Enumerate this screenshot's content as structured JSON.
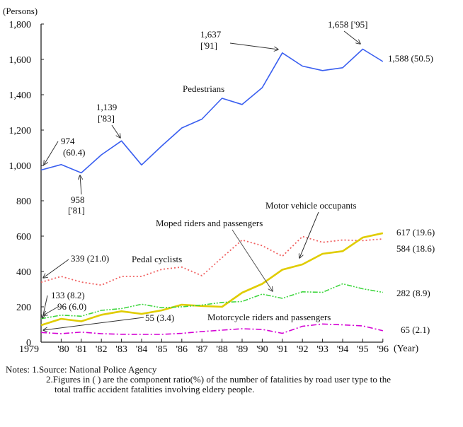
{
  "chart_data": {
    "type": "line",
    "title": "",
    "ylabel": "(Persons)",
    "xlabel": "(Year)",
    "ylim": [
      0,
      1800
    ],
    "yticks": [
      0,
      200,
      400,
      600,
      800,
      1000,
      1200,
      1400,
      1600,
      1800
    ],
    "ytick_labels": [
      "0",
      "200",
      "400",
      "600",
      "800",
      "1,000",
      "1,200",
      "1,400",
      "1,600",
      "1,800"
    ],
    "x": [
      1979,
      1980,
      1981,
      1982,
      1983,
      1984,
      1985,
      1986,
      1987,
      1988,
      1989,
      1990,
      1991,
      1992,
      1993,
      1994,
      1995,
      1996
    ],
    "xtick_labels": [
      "1979",
      "'80",
      "'81",
      "'82",
      "'83",
      "'84",
      "'85",
      "'86",
      "'87",
      "'88",
      "'89",
      "'90",
      "'91",
      "'92",
      "'93",
      "'94",
      "'95",
      "'96"
    ],
    "grid": false,
    "series": [
      {
        "name": "Pedestrians",
        "color": "#3a5ff0",
        "style": "solid",
        "values": [
          974,
          1005,
          958,
          1060,
          1139,
          1003,
          1110,
          1212,
          1262,
          1380,
          1345,
          1440,
          1637,
          1562,
          1537,
          1553,
          1658,
          1588
        ],
        "end_label": "1,588 (50.5)",
        "start_label": "974",
        "start_ratio": "(60.4)"
      },
      {
        "name": "Pedal cyclists",
        "color": "#f06060",
        "style": "dotted",
        "values": [
          339,
          372,
          340,
          323,
          372,
          372,
          412,
          425,
          376,
          478,
          578,
          546,
          486,
          598,
          565,
          578,
          575,
          584
        ],
        "end_label": "584 (18.6)",
        "start_label": "339 (21.0)"
      },
      {
        "name": "Motor vehicle occupants",
        "color": "#e0cc00",
        "style": "solid-thick",
        "values": [
          96,
          132,
          118,
          155,
          175,
          160,
          180,
          212,
          205,
          200,
          280,
          330,
          410,
          440,
          500,
          515,
          592,
          617
        ],
        "end_label": "617 (19.6)",
        "start_label": "96 (6.0)"
      },
      {
        "name": "Moped riders and passengers",
        "color": "#3ed63e",
        "style": "dash-dot-dot",
        "values": [
          133,
          153,
          147,
          180,
          190,
          215,
          195,
          200,
          210,
          225,
          230,
          272,
          248,
          285,
          282,
          330,
          302,
          282
        ],
        "end_label": "282 (8.9)",
        "start_label": "133 (8.2)"
      },
      {
        "name": "Motorcycle riders and passengers",
        "color": "#d400d4",
        "style": "dash-dot",
        "values": [
          55,
          48,
          57,
          48,
          45,
          44,
          44,
          50,
          60,
          68,
          76,
          72,
          50,
          90,
          103,
          98,
          92,
          65
        ],
        "end_label": "65 (2.1)",
        "start_label": "55 (3.4)"
      }
    ],
    "annotations": [
      {
        "text": "1,139",
        "sub": "['83]",
        "year": 1983,
        "value": 1139
      },
      {
        "text": "958",
        "sub": "['81]",
        "year": 1981,
        "value": 958
      },
      {
        "text": "1,637",
        "sub": "['91]",
        "year": 1991,
        "value": 1637
      },
      {
        "text": "1,658 ['95]",
        "year": 1995,
        "value": 1658
      }
    ]
  },
  "notes": {
    "line1": "Notes: 1.Source: National Police Agency",
    "line2": "2.Figures in ( ) are the component ratio(%) of the number of fatalities by road user type to the",
    "line3": "total traffic accident fatalities involving eldery people."
  }
}
